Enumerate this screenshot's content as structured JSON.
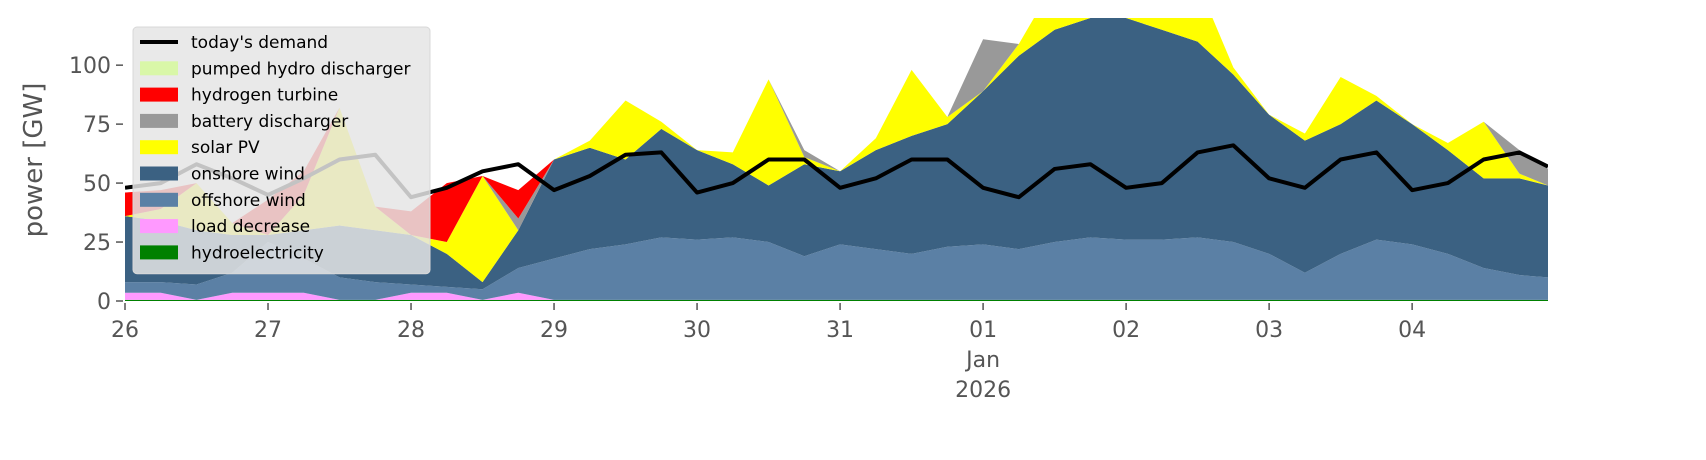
{
  "chart_data": {
    "type": "area",
    "y_label": "power [GW]",
    "legend": "upper left",
    "x": [
      0,
      0.25,
      0.5,
      0.75,
      1,
      1.25,
      1.5,
      1.75,
      2,
      2.25,
      2.5,
      2.75,
      3,
      3.25,
      3.5,
      3.75,
      4,
      4.25,
      4.5,
      4.75,
      5,
      5.25,
      5.5,
      5.75,
      6,
      6.25,
      6.5,
      6.75,
      7,
      7.25,
      7.5,
      7.75,
      8,
      8.25,
      8.5,
      8.75,
      9,
      9.25,
      9.5,
      9.75,
      9.95
    ],
    "xlim": [
      0,
      9.95
    ],
    "xticks": [
      {
        "value": 0,
        "label": "26"
      },
      {
        "value": 1,
        "label": "27"
      },
      {
        "value": 2,
        "label": "28"
      },
      {
        "value": 3,
        "label": "29"
      },
      {
        "value": 4,
        "label": "30"
      },
      {
        "value": 5,
        "label": "31"
      },
      {
        "value": 6,
        "label": "01\nJan\n2026"
      },
      {
        "value": 7,
        "label": "02"
      },
      {
        "value": 8,
        "label": "03"
      },
      {
        "value": 9,
        "label": "04"
      }
    ],
    "ylim": [
      0,
      120
    ],
    "yticks": [
      0,
      25,
      50,
      75,
      100
    ],
    "series": [
      {
        "name": "today's demand",
        "type": "line",
        "color": "#000000",
        "values": [
          48,
          50,
          58,
          52,
          45,
          52,
          60,
          62,
          44,
          48,
          55,
          58,
          47,
          53,
          62,
          63,
          46,
          50,
          60,
          60,
          48,
          52,
          60,
          60,
          48,
          44,
          56,
          58,
          48,
          50,
          63,
          66,
          52,
          48,
          60,
          63,
          47,
          50,
          60,
          63,
          57
        ]
      },
      {
        "name": "pumped hydro discharger",
        "type": "area",
        "color": "#d9f7a8",
        "values": [
          0,
          0,
          0,
          0,
          0,
          0,
          0,
          0,
          0,
          0,
          0,
          0,
          0,
          0,
          0,
          0,
          0,
          0,
          0,
          0,
          0,
          0,
          0,
          0,
          0,
          0,
          0,
          0,
          0,
          0,
          0,
          0,
          0,
          0,
          0,
          0,
          0,
          0,
          0,
          0,
          0
        ]
      },
      {
        "name": "hydrogen turbine",
        "type": "area",
        "color": "#ff0000",
        "values": [
          10,
          8,
          0,
          0,
          15,
          10,
          0,
          0,
          10,
          25,
          0,
          12,
          0,
          0,
          0,
          0,
          0,
          0,
          0,
          0,
          0,
          0,
          0,
          0,
          0,
          0,
          0,
          0,
          0,
          0,
          0,
          0,
          0,
          0,
          0,
          0,
          0,
          0,
          0,
          0,
          0
        ]
      },
      {
        "name": "battery discharger",
        "type": "area",
        "color": "#999999",
        "values": [
          0,
          0,
          0,
          0,
          0,
          0,
          0,
          0,
          0,
          0,
          0,
          5,
          0,
          0,
          0,
          0,
          0,
          0,
          0,
          3,
          0,
          0,
          0,
          0,
          22,
          0,
          0,
          0,
          0,
          0,
          0,
          0,
          0,
          0,
          0,
          0,
          0,
          0,
          0,
          10,
          7
        ]
      },
      {
        "name": "solar PV",
        "type": "area",
        "color": "#ffff00",
        "values": [
          0,
          5,
          20,
          5,
          0,
          15,
          50,
          10,
          0,
          5,
          45,
          0,
          0,
          3,
          25,
          3,
          0,
          5,
          45,
          3,
          0,
          5,
          28,
          3,
          0,
          5,
          20,
          5,
          0,
          5,
          25,
          3,
          0,
          3,
          20,
          2,
          0,
          3,
          24,
          2,
          0
        ]
      },
      {
        "name": "onshore wind",
        "type": "area",
        "color": "#3b6182",
        "values": [
          28,
          26,
          23,
          16,
          3,
          12,
          22,
          22,
          21,
          14,
          3,
          16,
          42,
          43,
          36,
          46,
          38,
          31,
          24,
          39,
          31,
          42,
          50,
          52,
          65,
          82,
          90,
          93,
          94,
          89,
          83,
          71,
          59,
          56,
          55,
          59,
          51,
          44,
          38,
          41,
          39
        ]
      },
      {
        "name": "offshore wind",
        "type": "area",
        "color": "#5b80a5",
        "values": [
          4.5,
          4.5,
          6.5,
          8.5,
          21.5,
          14.5,
          9.5,
          7.5,
          3.5,
          2.5,
          4.5,
          10.5,
          17.5,
          21.5,
          23.5,
          26.5,
          25.5,
          26.5,
          24.5,
          18.5,
          23.5,
          21.5,
          19.5,
          22.5,
          23.5,
          21.5,
          24.5,
          26.5,
          25.5,
          25.5,
          26.5,
          24.5,
          19.5,
          11.5,
          19.5,
          25.5,
          23.5,
          19.5,
          13.5,
          10.5,
          9.5
        ]
      },
      {
        "name": "load decrease",
        "type": "area",
        "color": "#ff99ff",
        "values": [
          3,
          3,
          0,
          3,
          3,
          3,
          0,
          0,
          3,
          3,
          0,
          3,
          0,
          0,
          0,
          0,
          0,
          0,
          0,
          0,
          0,
          0,
          0,
          0,
          0,
          0,
          0,
          0,
          0,
          0,
          0,
          0,
          0,
          0,
          0,
          0,
          0,
          0,
          0,
          0,
          0
        ]
      },
      {
        "name": "hydroelectricity",
        "type": "area",
        "color": "#008000",
        "values": [
          0.5,
          0.5,
          0.5,
          0.5,
          0.5,
          0.5,
          0.5,
          0.5,
          0.5,
          0.5,
          0.5,
          0.5,
          0.5,
          0.5,
          0.5,
          0.5,
          0.5,
          0.5,
          0.5,
          0.5,
          0.5,
          0.5,
          0.5,
          0.5,
          0.5,
          0.5,
          0.5,
          0.5,
          0.5,
          0.5,
          0.5,
          0.5,
          0.5,
          0.5,
          0.5,
          0.5,
          0.5,
          0.5,
          0.5,
          0.5,
          0.5
        ]
      }
    ]
  }
}
